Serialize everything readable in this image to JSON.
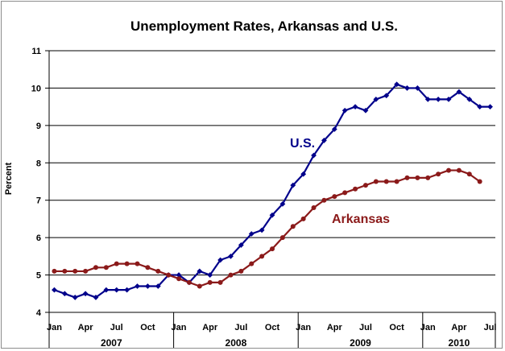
{
  "chart_data": {
    "type": "line",
    "title": "Unemployment Rates, Arkansas and U.S.",
    "xlabel": "",
    "ylabel": "Percent",
    "ylim": [
      4,
      11
    ],
    "yticks": [
      "4",
      "5",
      "6",
      "7",
      "8",
      "9",
      "10",
      "11"
    ],
    "grid": "horizontal",
    "x_start": "2007-01",
    "x_months": 43,
    "x_tick_labels": [
      "Jan",
      "Apr",
      "Jul",
      "Oct",
      "Jan",
      "Apr",
      "Jul",
      "Oct",
      "Jan",
      "Apr",
      "Jul",
      "Oct",
      "Jan",
      "Apr",
      "Jul"
    ],
    "x_year_labels": [
      "2007",
      "2008",
      "2009",
      "2010"
    ],
    "series": [
      {
        "name": "U.S.",
        "color": "#00008b",
        "marker": "diamond",
        "values": [
          4.6,
          4.5,
          4.4,
          4.5,
          4.4,
          4.6,
          4.6,
          4.6,
          4.7,
          4.7,
          4.7,
          5.0,
          5.0,
          4.8,
          5.1,
          5.0,
          5.4,
          5.5,
          5.8,
          6.1,
          6.2,
          6.6,
          6.9,
          7.4,
          7.7,
          8.2,
          8.6,
          8.9,
          9.4,
          9.5,
          9.4,
          9.7,
          9.8,
          10.1,
          10.0,
          10.0,
          9.7,
          9.7,
          9.7,
          9.9,
          9.7,
          9.5,
          9.5
        ]
      },
      {
        "name": "Arkansas",
        "color": "#8b1a1a",
        "marker": "circle",
        "values": [
          5.1,
          5.1,
          5.1,
          5.1,
          5.2,
          5.2,
          5.3,
          5.3,
          5.3,
          5.2,
          5.1,
          5.0,
          4.9,
          4.8,
          4.7,
          4.8,
          4.8,
          5.0,
          5.1,
          5.3,
          5.5,
          5.7,
          6.0,
          6.3,
          6.5,
          6.8,
          7.0,
          7.1,
          7.2,
          7.3,
          7.4,
          7.5,
          7.5,
          7.5,
          7.6,
          7.6,
          7.6,
          7.7,
          7.8,
          7.8,
          7.7,
          7.5
        ]
      }
    ]
  }
}
